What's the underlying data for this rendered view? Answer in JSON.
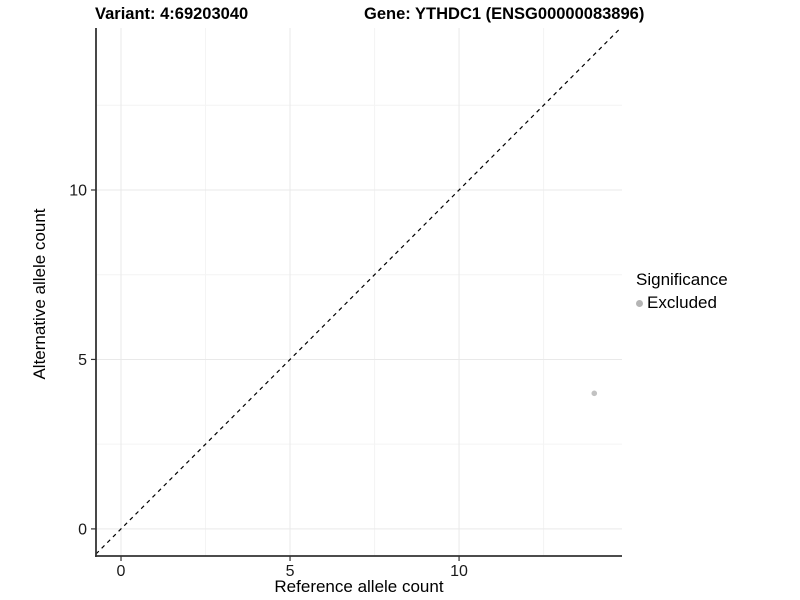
{
  "chart_data": {
    "type": "scatter",
    "title_left": "Variant: 4:69203040",
    "title_right": "Gene: YTHDC1 (ENSG00000083896)",
    "xlabel": "Reference allele count",
    "ylabel": "Alternative allele count",
    "xlim": [
      -0.74,
      14.82
    ],
    "ylim": [
      -0.8,
      14.78
    ],
    "x_ticks": [
      {
        "value": 0,
        "label": "0"
      },
      {
        "value": 5,
        "label": "5"
      },
      {
        "value": 10,
        "label": "10"
      }
    ],
    "y_ticks": [
      {
        "value": 0,
        "label": "0"
      },
      {
        "value": 5,
        "label": "5"
      },
      {
        "value": 10,
        "label": "10"
      }
    ],
    "grid_minor": [
      2.5,
      7.5,
      12.5
    ],
    "grid_on": true,
    "identity_line": {
      "slope": 1,
      "intercept": 0,
      "style": "dashed"
    },
    "points": [
      {
        "x": 14,
        "y": 4,
        "significance": "Excluded"
      }
    ],
    "legend": {
      "title": "Significance",
      "position": "right",
      "items": [
        {
          "label": "Excluded",
          "color": "#b5b5b5"
        }
      ]
    },
    "colors": {
      "point": "#c2c2c2",
      "axis_line": "#333333",
      "tick_label": "#1a1a1a",
      "grid_major": "#e9e9e9",
      "grid_minor": "#f4f4f4",
      "identity_line": "#000000"
    }
  }
}
